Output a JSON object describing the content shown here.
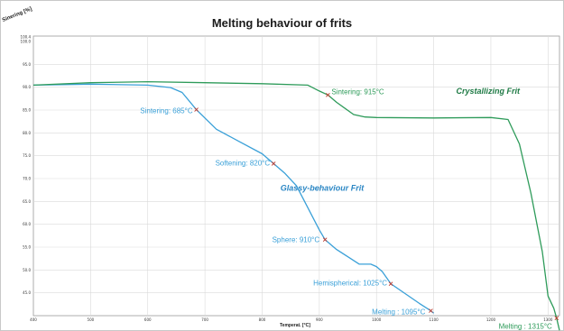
{
  "chart_data": {
    "type": "line",
    "title": "Melting behaviour of frits",
    "xlabel": "Temperat. [°C]",
    "ylabel": "Sinering [%]",
    "xlim": [
      400,
      1320
    ],
    "ylim": [
      95.3,
      101
    ],
    "x_ticks": [
      "400",
      "500",
      "600",
      "700",
      "800",
      "900",
      "1000",
      "1100",
      "1200",
      "1300"
    ],
    "y_ticks": [
      "100.4",
      "100.0",
      "95.0",
      "90.0",
      "85.0",
      "80.0",
      "75.0",
      "70.0",
      "65.0",
      "60.0",
      "55.0",
      "50.0",
      "45.0"
    ],
    "grid": true,
    "series": [
      {
        "name": "Glassy-behaviour Frit",
        "color": "#3aa0d8",
        "x": [
          400,
          500,
          600,
          640,
          660,
          685,
          720,
          760,
          800,
          820,
          840,
          860,
          880,
          900,
          910,
          930,
          950,
          970,
          990,
          1000,
          1010,
          1025,
          1050,
          1075,
          1095,
          1100
        ],
        "y": [
          100.0,
          100.02,
          100.0,
          99.95,
          99.85,
          99.5,
          99.1,
          98.85,
          98.6,
          98.4,
          98.2,
          97.95,
          97.5,
          97.05,
          96.85,
          96.65,
          96.5,
          96.35,
          96.35,
          96.3,
          96.2,
          95.95,
          95.75,
          95.55,
          95.4,
          95.35
        ]
      },
      {
        "name": "Crystallizing Frit",
        "color": "#2e9b5a",
        "x": [
          400,
          500,
          600,
          700,
          800,
          880,
          900,
          915,
          930,
          960,
          980,
          1000,
          1100,
          1200,
          1230,
          1250,
          1270,
          1290,
          1300,
          1310,
          1315,
          1320
        ],
        "y": [
          100.0,
          100.05,
          100.07,
          100.05,
          100.03,
          100.0,
          99.88,
          99.8,
          99.65,
          99.4,
          99.35,
          99.34,
          99.33,
          99.34,
          99.3,
          98.8,
          97.8,
          96.6,
          95.7,
          95.45,
          95.25,
          95.0
        ]
      }
    ],
    "annotations": [
      {
        "text": "Sintering: 685°C",
        "x": 685,
        "y": 99.5,
        "series": 0
      },
      {
        "text": "Softening: 820°C",
        "x": 820,
        "y": 98.4,
        "series": 0
      },
      {
        "text": "Sphere: 910°C",
        "x": 910,
        "y": 96.85,
        "series": 0
      },
      {
        "text": "Hemispherical: 1025°C",
        "x": 1025,
        "y": 95.95,
        "series": 0
      },
      {
        "text": "Melting : 1095°C",
        "x": 1095,
        "y": 95.4,
        "series": 0
      },
      {
        "text": "Sintering: 915°C",
        "x": 915,
        "y": 99.8,
        "series": 1
      },
      {
        "text": "Melting : 1315°C",
        "x": 1315,
        "y": 95.25,
        "series": 1
      }
    ]
  }
}
